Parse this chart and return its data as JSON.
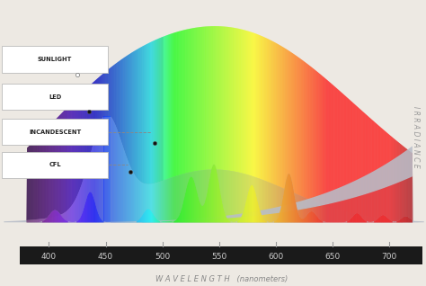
{
  "background_color": "#ede9e3",
  "plot_bg": "#ede9e3",
  "xlim": [
    360,
    730
  ],
  "xlabel": "W A V E L E N G T H   (nanometers)",
  "xlabel_color": "#888888",
  "xticks": [
    400,
    450,
    500,
    550,
    600,
    650,
    700
  ],
  "xbar_color": "#1a1a1a",
  "xbar_text_color": "#cccccc",
  "irradiance_label": "I R R A D I A N C E",
  "legend_labels": [
    "SUNLIGHT",
    "LED",
    "INCANDESCENT",
    "CFL"
  ],
  "legend_label_color": "#222222",
  "sunlight_dot_color": "#ffffff",
  "led_dot_color": "#111111",
  "incandescent_dot_color": "#111111",
  "cfl_dot_color": "#111111"
}
